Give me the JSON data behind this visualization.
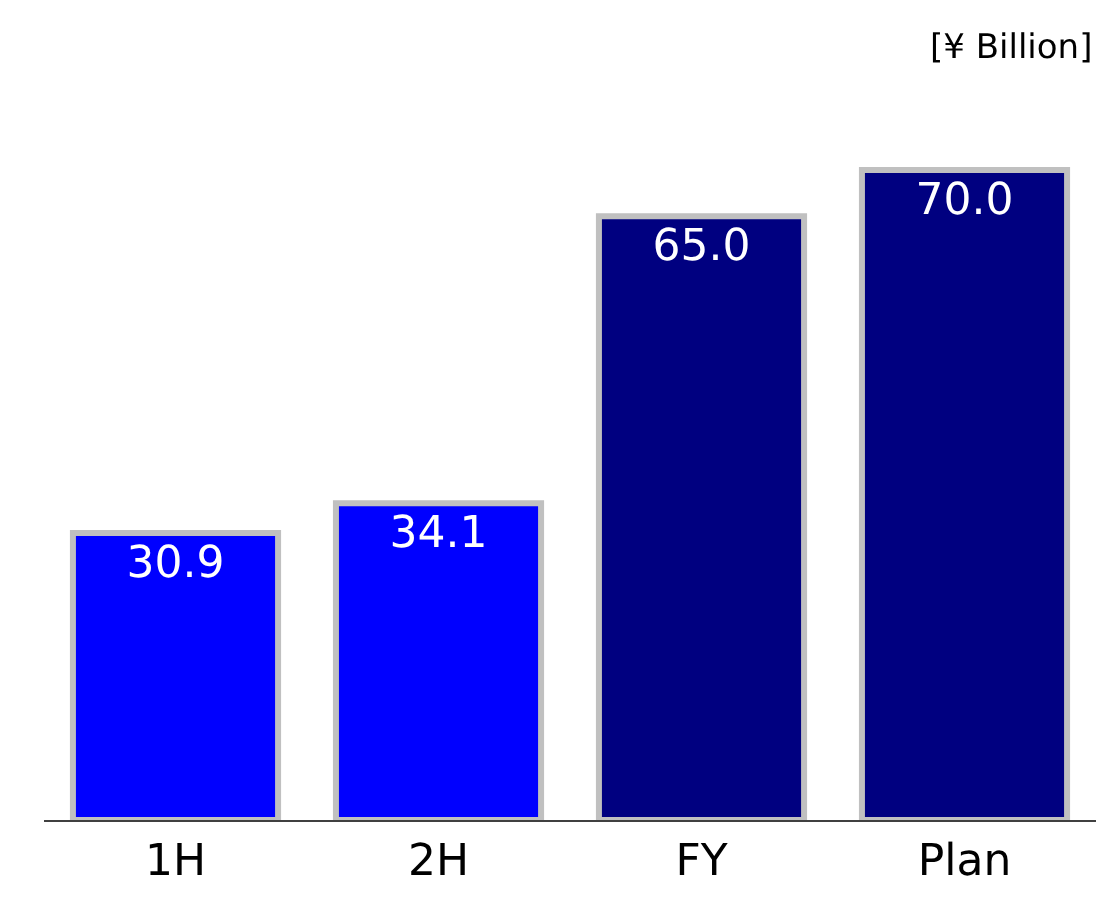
{
  "chart_data": {
    "type": "bar",
    "categories": [
      "1H",
      "2H",
      "FY",
      "Plan"
    ],
    "values": [
      30.9,
      34.1,
      65.0,
      70.0
    ],
    "colors": [
      "#0000ff",
      "#0000ff",
      "#000080",
      "#000080"
    ],
    "value_labels": [
      "30.9",
      "34.1",
      "65.0",
      "70.0"
    ],
    "annotations": [
      "[¥ Billion]"
    ]
  }
}
